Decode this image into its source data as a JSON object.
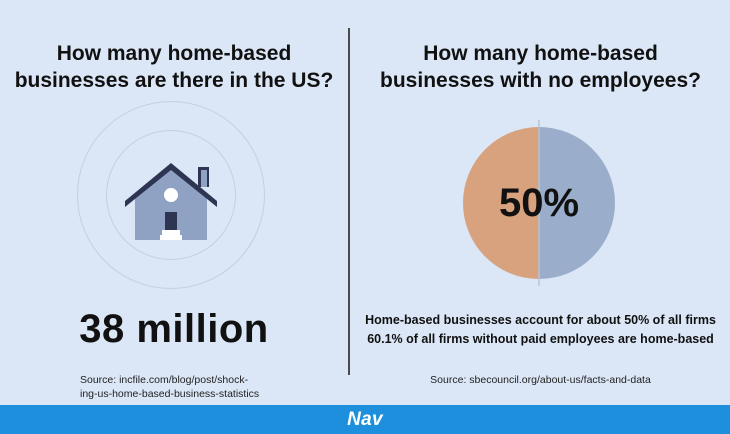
{
  "left": {
    "heading_line1": "How many home-based",
    "heading_line2": "businesses are there in the US?",
    "icon": "house-icon",
    "big_number": "38 million",
    "source_line1": "Source: incfile.com/blog/post/shock-",
    "source_line2": "ing-us-home-based-business-statistics"
  },
  "right": {
    "heading_line1": "How many home-based",
    "heading_line2": "businesses with no employees?",
    "fact_line1": "Home-based businesses account for about 50% of all firms",
    "fact_line2": "60.1% of all firms without paid employees are home-based",
    "source": "Source: sbecouncil.org/about-us/facts-and-data"
  },
  "chart_data": {
    "type": "pie",
    "center_label": "50%",
    "values": [
      50,
      50
    ],
    "colors": [
      "#d8a27e",
      "#9aaecb"
    ]
  },
  "colors": {
    "background": "#dbe6f6",
    "house_roof": "#2e3552",
    "house_body": "#8fa2c4",
    "footer": "#1d8fdd"
  },
  "footer": {
    "brand": "Nav"
  }
}
